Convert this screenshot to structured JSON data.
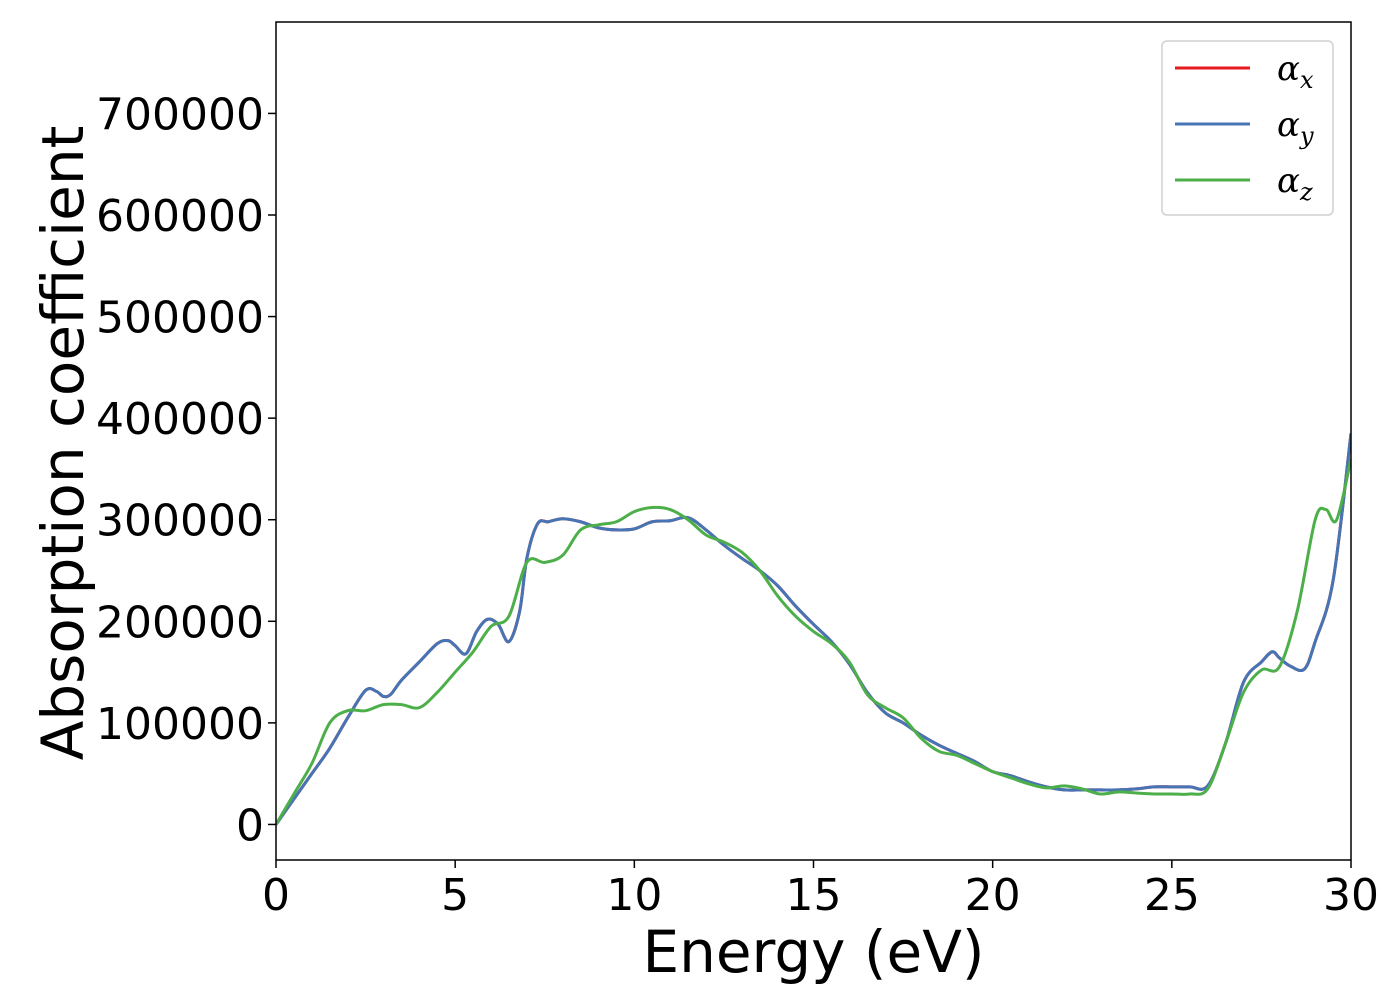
{
  "chart_data": {
    "type": "line",
    "xlabel": "Energy (eV)",
    "ylabel": "Absorption coefficient",
    "xlim": [
      0,
      30
    ],
    "ylim": [
      -35000,
      790000
    ],
    "xticks": [
      0,
      5,
      10,
      15,
      20,
      25,
      30
    ],
    "yticks": [
      0,
      100000,
      200000,
      300000,
      400000,
      500000,
      600000,
      700000
    ],
    "xtick_labels": [
      "0",
      "5",
      "10",
      "15",
      "20",
      "25",
      "30"
    ],
    "ytick_labels": [
      "0",
      "100000",
      "200000",
      "300000",
      "400000",
      "500000",
      "600000",
      "700000"
    ],
    "grid": false,
    "legend_position": "top-right",
    "series": [
      {
        "name": "α_x",
        "legend_base": "α",
        "legend_sub": "x",
        "color": "#e41a1c",
        "x": [
          0,
          0.5,
          1,
          1.5,
          2,
          2.5,
          2.8,
          3,
          3.2,
          3.5,
          4,
          4.5,
          4.8,
          5,
          5.3,
          5.6,
          5.9,
          6.2,
          6.5,
          6.8,
          7,
          7.3,
          7.6,
          8,
          8.5,
          9,
          9.5,
          10,
          10.5,
          11,
          11.5,
          12,
          12.5,
          13,
          13.5,
          14,
          14.5,
          15,
          15.5,
          16,
          16.5,
          17,
          17.5,
          18,
          18.5,
          19,
          19.5,
          20,
          20.5,
          21,
          21.5,
          22,
          22.5,
          23,
          23.5,
          24,
          24.5,
          25,
          25.5,
          26,
          26.5,
          27,
          27.5,
          27.8,
          28,
          28.3,
          28.7,
          29,
          29.5,
          30
        ],
        "values": [
          0,
          25000,
          50000,
          75000,
          105000,
          132000,
          131000,
          126000,
          128000,
          142000,
          160000,
          178000,
          181000,
          176000,
          168000,
          190000,
          202000,
          197000,
          180000,
          210000,
          262000,
          296000,
          298000,
          301000,
          298000,
          292000,
          290000,
          291000,
          298000,
          299000,
          302000,
          290000,
          275000,
          262000,
          250000,
          235000,
          215000,
          197000,
          180000,
          158000,
          130000,
          110000,
          100000,
          88000,
          78000,
          70000,
          62000,
          52000,
          48000,
          42000,
          37000,
          34000,
          34000,
          34000,
          34000,
          35000,
          37000,
          37000,
          37000,
          38000,
          80000,
          140000,
          160000,
          170000,
          164000,
          156000,
          153000,
          180000,
          240000,
          385000
        ]
      },
      {
        "name": "α_y",
        "legend_base": "α",
        "legend_sub": "y",
        "color": "#4575b4",
        "x": [
          0,
          0.5,
          1,
          1.5,
          2,
          2.5,
          2.8,
          3,
          3.2,
          3.5,
          4,
          4.5,
          4.8,
          5,
          5.3,
          5.6,
          5.9,
          6.2,
          6.5,
          6.8,
          7,
          7.3,
          7.6,
          8,
          8.5,
          9,
          9.5,
          10,
          10.5,
          11,
          11.5,
          12,
          12.5,
          13,
          13.5,
          14,
          14.5,
          15,
          15.5,
          16,
          16.5,
          17,
          17.5,
          18,
          18.5,
          19,
          19.5,
          20,
          20.5,
          21,
          21.5,
          22,
          22.5,
          23,
          23.5,
          24,
          24.5,
          25,
          25.5,
          26,
          26.5,
          27,
          27.5,
          27.8,
          28,
          28.3,
          28.7,
          29,
          29.5,
          30
        ],
        "values": [
          0,
          25000,
          50000,
          75000,
          105000,
          132000,
          131000,
          126000,
          128000,
          142000,
          160000,
          178000,
          181000,
          176000,
          168000,
          190000,
          202000,
          197000,
          180000,
          210000,
          262000,
          296000,
          298000,
          301000,
          298000,
          292000,
          290000,
          291000,
          298000,
          299000,
          302000,
          290000,
          275000,
          262000,
          250000,
          235000,
          215000,
          197000,
          180000,
          158000,
          130000,
          110000,
          100000,
          88000,
          78000,
          70000,
          62000,
          52000,
          48000,
          42000,
          37000,
          34000,
          34000,
          34000,
          34000,
          35000,
          37000,
          37000,
          37000,
          38000,
          80000,
          140000,
          160000,
          170000,
          164000,
          156000,
          153000,
          180000,
          240000,
          385000
        ]
      },
      {
        "name": "α_z",
        "legend_base": "α",
        "legend_sub": "z",
        "color": "#4daf4a",
        "x": [
          0,
          0.5,
          1,
          1.5,
          2,
          2.5,
          3,
          3.5,
          4,
          4.5,
          5,
          5.5,
          6,
          6.5,
          7,
          7.5,
          8,
          8.5,
          9,
          9.5,
          10,
          10.5,
          11,
          11.5,
          12,
          12.5,
          13,
          13.5,
          14,
          14.5,
          15,
          15.5,
          16,
          16.5,
          17,
          17.5,
          18,
          18.5,
          19,
          19.5,
          20,
          20.5,
          21,
          21.5,
          22,
          22.5,
          23,
          23.5,
          24,
          24.5,
          25,
          25.5,
          26,
          26.5,
          27,
          27.5,
          28,
          28.5,
          29,
          29.3,
          29.6,
          30
        ],
        "values": [
          0,
          30000,
          60000,
          100000,
          112000,
          112000,
          118000,
          118000,
          115000,
          130000,
          150000,
          170000,
          195000,
          205000,
          258000,
          258000,
          265000,
          290000,
          295000,
          298000,
          308000,
          312000,
          310000,
          300000,
          285000,
          278000,
          268000,
          250000,
          225000,
          205000,
          190000,
          178000,
          160000,
          128000,
          115000,
          105000,
          85000,
          72000,
          68000,
          60000,
          52000,
          46000,
          40000,
          36000,
          38000,
          35000,
          30000,
          32000,
          31000,
          30000,
          30000,
          30000,
          35000,
          80000,
          130000,
          152000,
          155000,
          210000,
          300000,
          310000,
          300000,
          360000
        ]
      }
    ]
  }
}
